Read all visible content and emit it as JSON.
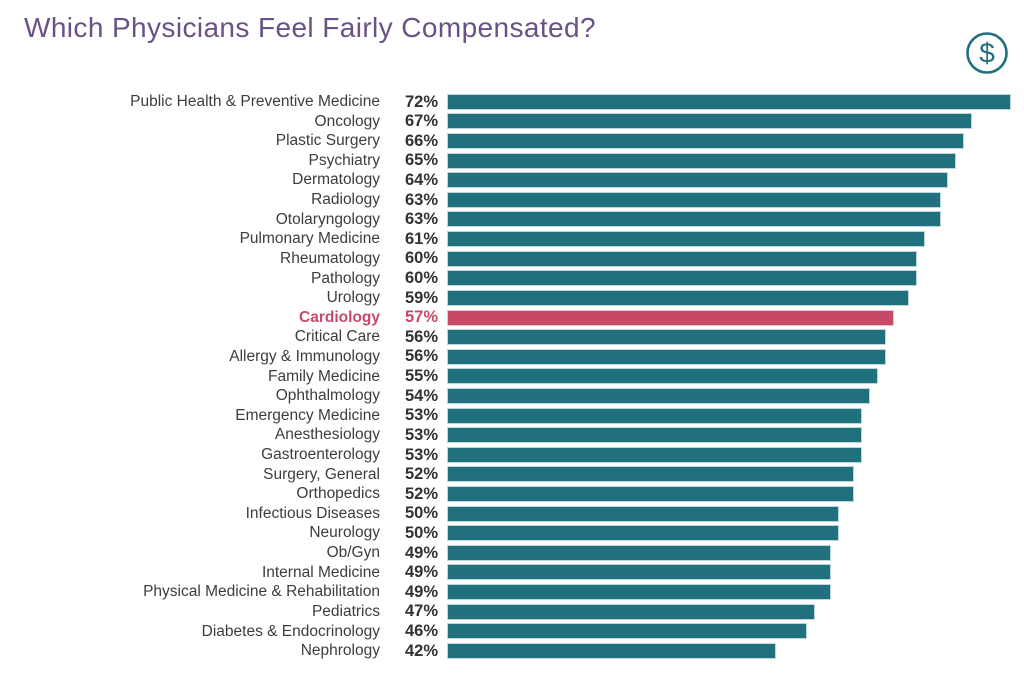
{
  "header": {
    "title": "Which Physicians Feel Fairly Compensated?",
    "title_color": "#6a5286",
    "icon": "dollar-circle-icon",
    "icon_symbol": "$",
    "icon_color": "#21707e"
  },
  "chart_data": {
    "type": "bar",
    "orientation": "horizontal",
    "title": "Which Physicians Feel Fairly Compensated?",
    "value_suffix": "%",
    "xlim": [
      0,
      72
    ],
    "grid": false,
    "legend": "none",
    "bar_color": "#21707e",
    "highlight_color": "#c64a67",
    "highlight_category": "Cardiology",
    "label_color": "#3d3d3d",
    "categories": [
      "Public Health & Preventive Medicine",
      "Oncology",
      "Plastic Surgery",
      "Psychiatry",
      "Dermatology",
      "Radiology",
      "Otolaryngology",
      "Pulmonary Medicine",
      "Rheumatology",
      "Pathology",
      "Urology",
      "Cardiology",
      "Critical Care",
      "Allergy & Immunology",
      "Family Medicine",
      "Ophthalmology",
      "Emergency Medicine",
      "Anesthesiology",
      "Gastroenterology",
      "Surgery, General",
      "Orthopedics",
      "Infectious Diseases",
      "Neurology",
      "Ob/Gyn",
      "Internal Medicine",
      "Physical Medicine & Rehabilitation",
      "Pediatrics",
      "Diabetes & Endocrinology",
      "Nephrology"
    ],
    "values": [
      72,
      67,
      66,
      65,
      64,
      63,
      63,
      61,
      60,
      60,
      59,
      57,
      56,
      56,
      55,
      54,
      53,
      53,
      53,
      52,
      52,
      50,
      50,
      49,
      49,
      49,
      47,
      46,
      42
    ]
  }
}
